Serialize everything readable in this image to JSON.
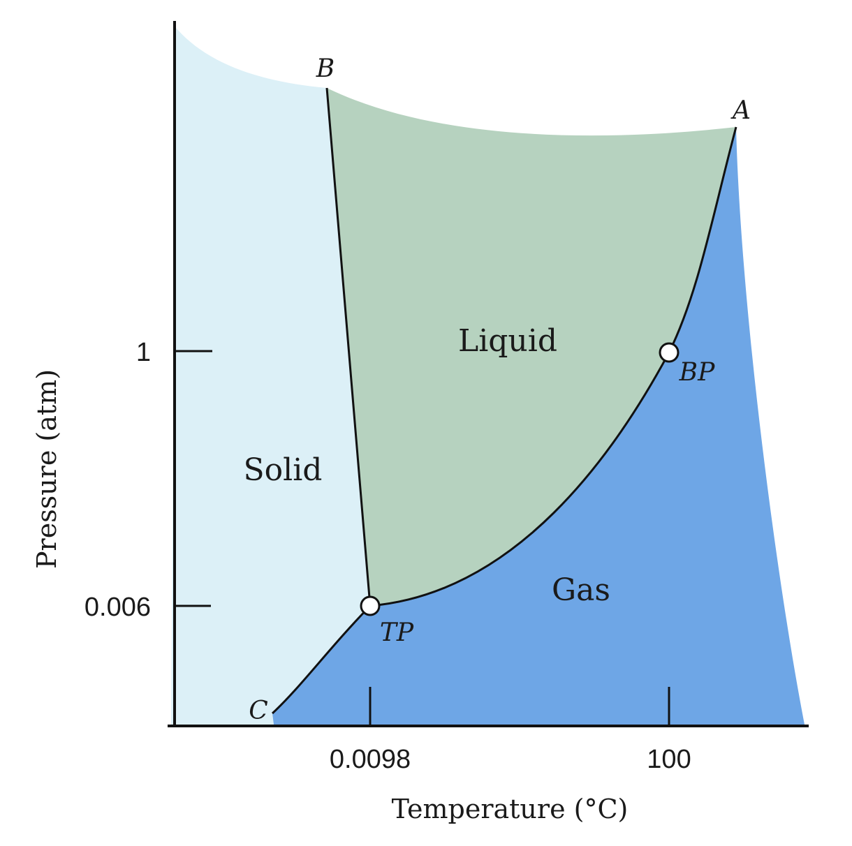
{
  "regions": {
    "solid": "Solid",
    "liquid": "Liquid",
    "gas": "Gas"
  },
  "curves": {
    "a": "A",
    "b": "B",
    "c": "C"
  },
  "points": {
    "tp": "TP",
    "bp": "BP"
  },
  "axes": {
    "x_title": "Temperature (°C)",
    "y_title": "Pressure (atm)",
    "x_ticks": [
      "0.0098",
      "100"
    ],
    "y_ticks": [
      "1",
      "0.006"
    ]
  },
  "colors": {
    "solid": "#dcf0f7",
    "liquid": "#b6d2bf",
    "gas": "#6ea6e6",
    "lines": "#111111",
    "point_fill": "#ffffff"
  }
}
